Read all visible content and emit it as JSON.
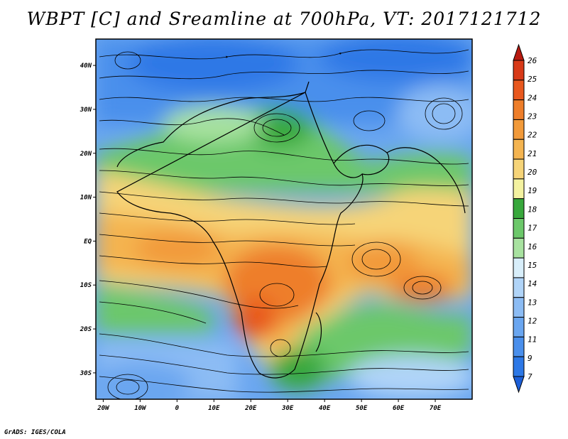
{
  "title": "WBPT [C] and Sreamline at 700hPa, VT: 2017121712",
  "footer": "GrADS: IGES/COLA",
  "map": {
    "lon_range": [
      -22,
      80
    ],
    "lat_range": [
      -36,
      46
    ],
    "lon_ticks": [
      "20W",
      "10W",
      "0",
      "10E",
      "20E",
      "30E",
      "40E",
      "50E",
      "60E",
      "70E"
    ],
    "lat_ticks": [
      "40N",
      "30N",
      "20N",
      "10N",
      "EQ",
      "10S",
      "20S",
      "30S"
    ],
    "colorbar": {
      "levels": [
        "7",
        "9",
        "11",
        "12",
        "13",
        "14",
        "15",
        "16",
        "17",
        "18",
        "19",
        "20",
        "21",
        "22",
        "23",
        "24",
        "25",
        "26"
      ],
      "colors": [
        "#1c5fd8",
        "#2d78e6",
        "#4a8fec",
        "#6aa6f0",
        "#8cbcf4",
        "#b0d4f8",
        "#d8eefa",
        "#a8e2a0",
        "#6cc86a",
        "#38a83c",
        "#f4f2a0",
        "#f6d478",
        "#f4b450",
        "#f29a3a",
        "#ee7e2a",
        "#e8581e",
        "#d83a18",
        "#b81a10"
      ]
    }
  }
}
